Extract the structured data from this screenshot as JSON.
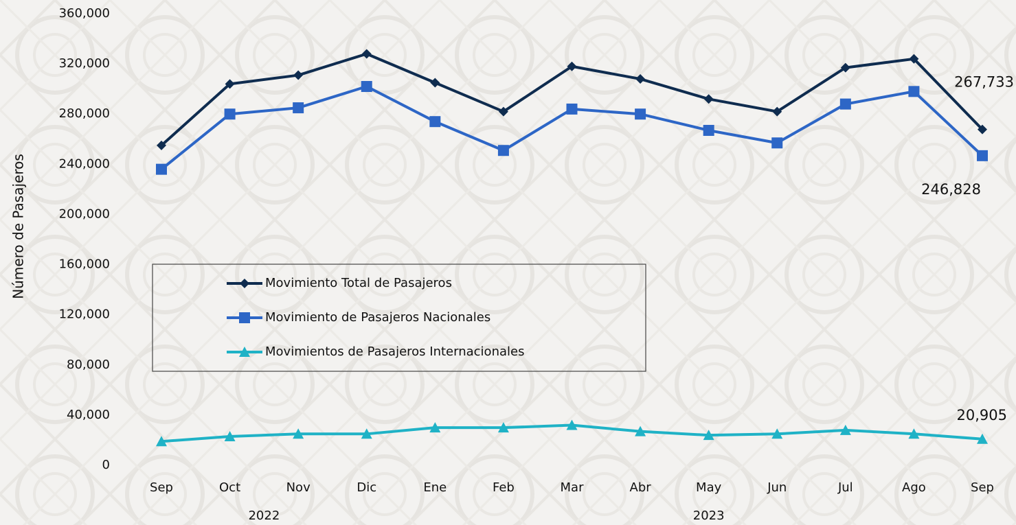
{
  "chart_data": {
    "type": "line",
    "y_label": "Número de Pasajeros",
    "categories": [
      "Sep",
      "Oct",
      "Nov",
      "Dic",
      "Ene",
      "Feb",
      "Mar",
      "Abr",
      "May",
      "Jun",
      "Jul",
      "Ago",
      "Sep"
    ],
    "x_groups": [
      {
        "label": "2022",
        "count": 4
      },
      {
        "label": "2023",
        "count": 9
      }
    ],
    "ylim": [
      0,
      360000
    ],
    "yticks": [
      0,
      {
        "value": 40000,
        "label": "40,000"
      },
      {
        "value": 80000,
        "label": "80,000"
      },
      {
        "value": 120000,
        "label": "120,000"
      },
      {
        "value": 160000,
        "label": "160,000"
      },
      {
        "value": 200000,
        "label": "200,000"
      },
      {
        "value": 240000,
        "label": "240,000"
      },
      {
        "value": 280000,
        "label": "280,000"
      },
      {
        "value": 320000,
        "label": "320,000"
      },
      {
        "value": 360000,
        "label": "360,000"
      }
    ],
    "legend": "center-left",
    "series": [
      {
        "name": "Movimiento Total de Pasajeros",
        "color": "#0f2c4f",
        "marker": "diamond",
        "values": [
          255000,
          304000,
          311000,
          328000,
          305000,
          282000,
          318000,
          308000,
          292000,
          282000,
          317000,
          324000,
          267733
        ],
        "value_labels": [
          null,
          null,
          null,
          null,
          null,
          null,
          null,
          null,
          null,
          null,
          null,
          null,
          "267,733"
        ]
      },
      {
        "name": "Movimiento de Pasajeros Nacionales",
        "color": "#2d66c6",
        "marker": "square",
        "values": [
          236000,
          280000,
          285000,
          302000,
          274000,
          251000,
          284000,
          280000,
          267000,
          257000,
          288000,
          298000,
          246828
        ],
        "value_labels": [
          null,
          null,
          null,
          null,
          null,
          null,
          null,
          null,
          null,
          null,
          null,
          null,
          "246,828"
        ]
      },
      {
        "name": "Movimientos de Pasajeros Internacionales",
        "color": "#1fb2c6",
        "marker": "triangle",
        "values": [
          19000,
          23000,
          25000,
          25000,
          30000,
          30000,
          32000,
          27000,
          24000,
          25000,
          28000,
          25000,
          20905
        ],
        "value_labels": [
          null,
          null,
          null,
          null,
          null,
          null,
          null,
          null,
          null,
          null,
          null,
          null,
          "20,905"
        ]
      }
    ]
  }
}
